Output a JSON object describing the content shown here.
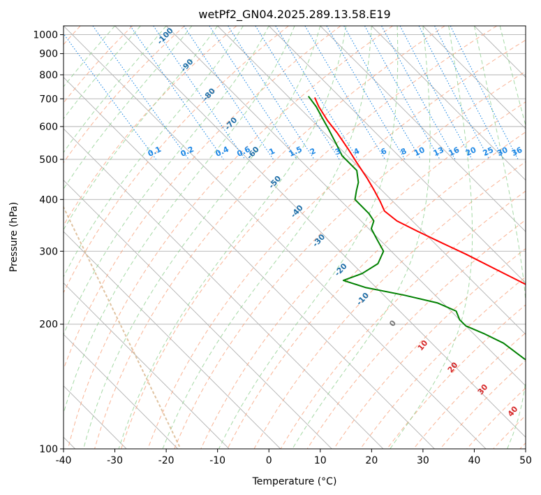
{
  "chart_data": {
    "type": "line",
    "title": "wetPf2_GN04.2025.289.13.58.E19",
    "xlabel": "Temperature (°C)",
    "ylabel": "Pressure (hPa)",
    "xlim": [
      -40,
      50
    ],
    "ylim": [
      1050,
      100
    ],
    "x_ticks": [
      -40,
      -30,
      -20,
      -10,
      0,
      10,
      20,
      30,
      40,
      50
    ],
    "y_ticks": [
      100,
      200,
      300,
      400,
      500,
      600,
      700,
      800,
      900,
      1000
    ],
    "y_scale": "log",
    "grid": true,
    "skew": "skew-T log-p",
    "series": [
      {
        "name": "Temperature",
        "color": "#ff0000",
        "points": [
          [
            -5,
            705
          ],
          [
            -6,
            670
          ],
          [
            -7,
            620
          ],
          [
            -7.5,
            580
          ],
          [
            -8.5,
            530
          ],
          [
            -9.5,
            490
          ],
          [
            -10.5,
            450
          ],
          [
            -11.5,
            420
          ],
          [
            -12.5,
            395
          ],
          [
            -13.5,
            375
          ],
          [
            -13,
            355
          ],
          [
            -11,
            335
          ],
          [
            -8,
            310
          ],
          [
            -6,
            295
          ],
          [
            -3,
            270
          ],
          [
            -1,
            255
          ],
          [
            1,
            240
          ],
          [
            3,
            225
          ],
          [
            5,
            210
          ],
          [
            6,
            200
          ],
          [
            7,
            188
          ],
          [
            8,
            175
          ],
          [
            9,
            163
          ],
          [
            11,
            148
          ],
          [
            13.5,
            135
          ],
          [
            15.5,
            125
          ],
          [
            16.5,
            115
          ],
          [
            18.5,
            107
          ],
          [
            20.5,
            100
          ]
        ]
      },
      {
        "name": "Dew point",
        "color": "#008000",
        "points": [
          [
            -6,
            710
          ],
          [
            -6.5,
            670
          ],
          [
            -7.5,
            630
          ],
          [
            -8.5,
            590
          ],
          [
            -10,
            540
          ],
          [
            -11,
            510
          ],
          [
            -11,
            470
          ],
          [
            -13,
            440
          ],
          [
            -15,
            420
          ],
          [
            -17,
            400
          ],
          [
            -17,
            370
          ],
          [
            -17.5,
            355
          ],
          [
            -19.5,
            340
          ],
          [
            -20.5,
            320
          ],
          [
            -21.5,
            300
          ],
          [
            -25,
            280
          ],
          [
            -30,
            265
          ],
          [
            -35,
            255
          ],
          [
            -32,
            245
          ],
          [
            -26,
            235
          ],
          [
            -21,
            225
          ],
          [
            -19,
            215
          ],
          [
            -20,
            205
          ],
          [
            -20,
            198
          ],
          [
            -18,
            190
          ],
          [
            -16,
            180
          ],
          [
            -15,
            165
          ],
          [
            -13.5,
            155
          ],
          [
            -12.5,
            145
          ],
          [
            -11.5,
            135
          ],
          [
            -8,
            125
          ],
          [
            -6,
            118
          ],
          [
            -2.5,
            110
          ],
          [
            0,
            103
          ],
          [
            1,
            100
          ]
        ]
      }
    ],
    "dry_adiabat_labels": [
      "-100",
      "-90",
      "-80",
      "-70",
      "-60",
      "-50",
      "-40",
      "-30",
      "-20",
      "-10"
    ],
    "moist_adiabat_labels": [
      "0",
      "10",
      "20",
      "30",
      "40"
    ],
    "mixing_ratio_labels": [
      "0.1",
      "0.2",
      "0.4",
      "0.6",
      "1",
      "1.5",
      "2",
      "3",
      "4",
      "6",
      "8",
      "10",
      "13",
      "16",
      "20",
      "25",
      "30",
      "36"
    ],
    "colors": {
      "temperature": "#ff0000",
      "dewpoint": "#008000",
      "isotherm": "#b0b0b0",
      "dry_adiabat": "#f8a07a",
      "moist_adiabat": "#8fcf8f",
      "mixing_ratio": "#1e88e5",
      "dry_label": "#1f6fa8",
      "moist_label": "#d62728",
      "mixing_label": "#1e88e5",
      "lcl_curve": "#d8b48a"
    }
  }
}
